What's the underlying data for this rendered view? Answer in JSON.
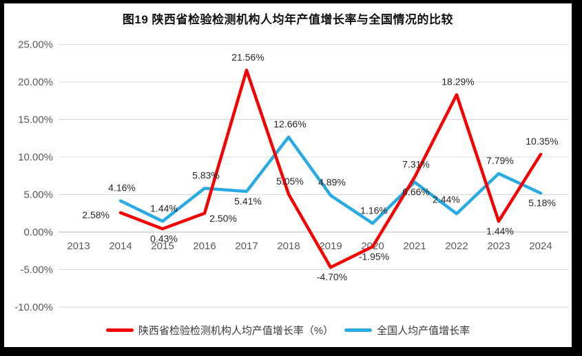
{
  "chart_data": {
    "type": "line",
    "title": "图19 陕西省检验检测机构人均年产值增长率与全国情况的比较",
    "categories": [
      "2013",
      "2014",
      "2015",
      "2016",
      "2017",
      "2018",
      "2019",
      "2020",
      "2021",
      "2022",
      "2023",
      "2024"
    ],
    "series": [
      {
        "name": "陕西省检验检测机构人均产值增长率（%）",
        "color": "#f40000",
        "values": [
          null,
          2.58,
          0.43,
          2.5,
          21.56,
          5.05,
          -4.7,
          -1.95,
          7.31,
          18.29,
          1.44,
          10.35
        ],
        "labels": [
          "",
          "2.58%",
          "0.43%",
          "2.50%",
          "21.56%",
          "5.05%",
          "-4.70%",
          "-1.95%",
          "7.31%",
          "18.29%",
          "1.44%",
          "10.35%"
        ],
        "label_pos": [
          "",
          "left",
          "below",
          "below-right",
          "above",
          "above",
          "below",
          "below",
          "above",
          "above",
          "below",
          "above"
        ]
      },
      {
        "name": "全国人均产值增长率",
        "color": "#29abe2",
        "values": [
          null,
          4.16,
          1.44,
          5.83,
          5.41,
          12.66,
          4.89,
          1.16,
          6.66,
          2.44,
          7.79,
          5.18
        ],
        "labels": [
          "",
          "4.16%",
          "1.44%",
          "5.83%",
          "5.41%",
          "12.66%",
          "4.89%",
          "1.16%",
          "6.66%",
          "2.44%",
          "7.79%",
          "5.18%"
        ],
        "label_pos": [
          "",
          "above",
          "above",
          "above",
          "below",
          "above",
          "above",
          "above",
          "below",
          "above-left",
          "above",
          "below"
        ]
      }
    ],
    "y_ticks": {
      "labels": [
        "25.00%",
        "20.00%",
        "15.00%",
        "10.00%",
        "5.00%",
        "0.00%",
        "-5.00%",
        "-10.00%"
      ],
      "values": [
        25,
        20,
        15,
        10,
        5,
        0,
        -5,
        -10
      ]
    },
    "ylim": [
      -10,
      25
    ],
    "grid": true,
    "legend_position": "bottom"
  }
}
